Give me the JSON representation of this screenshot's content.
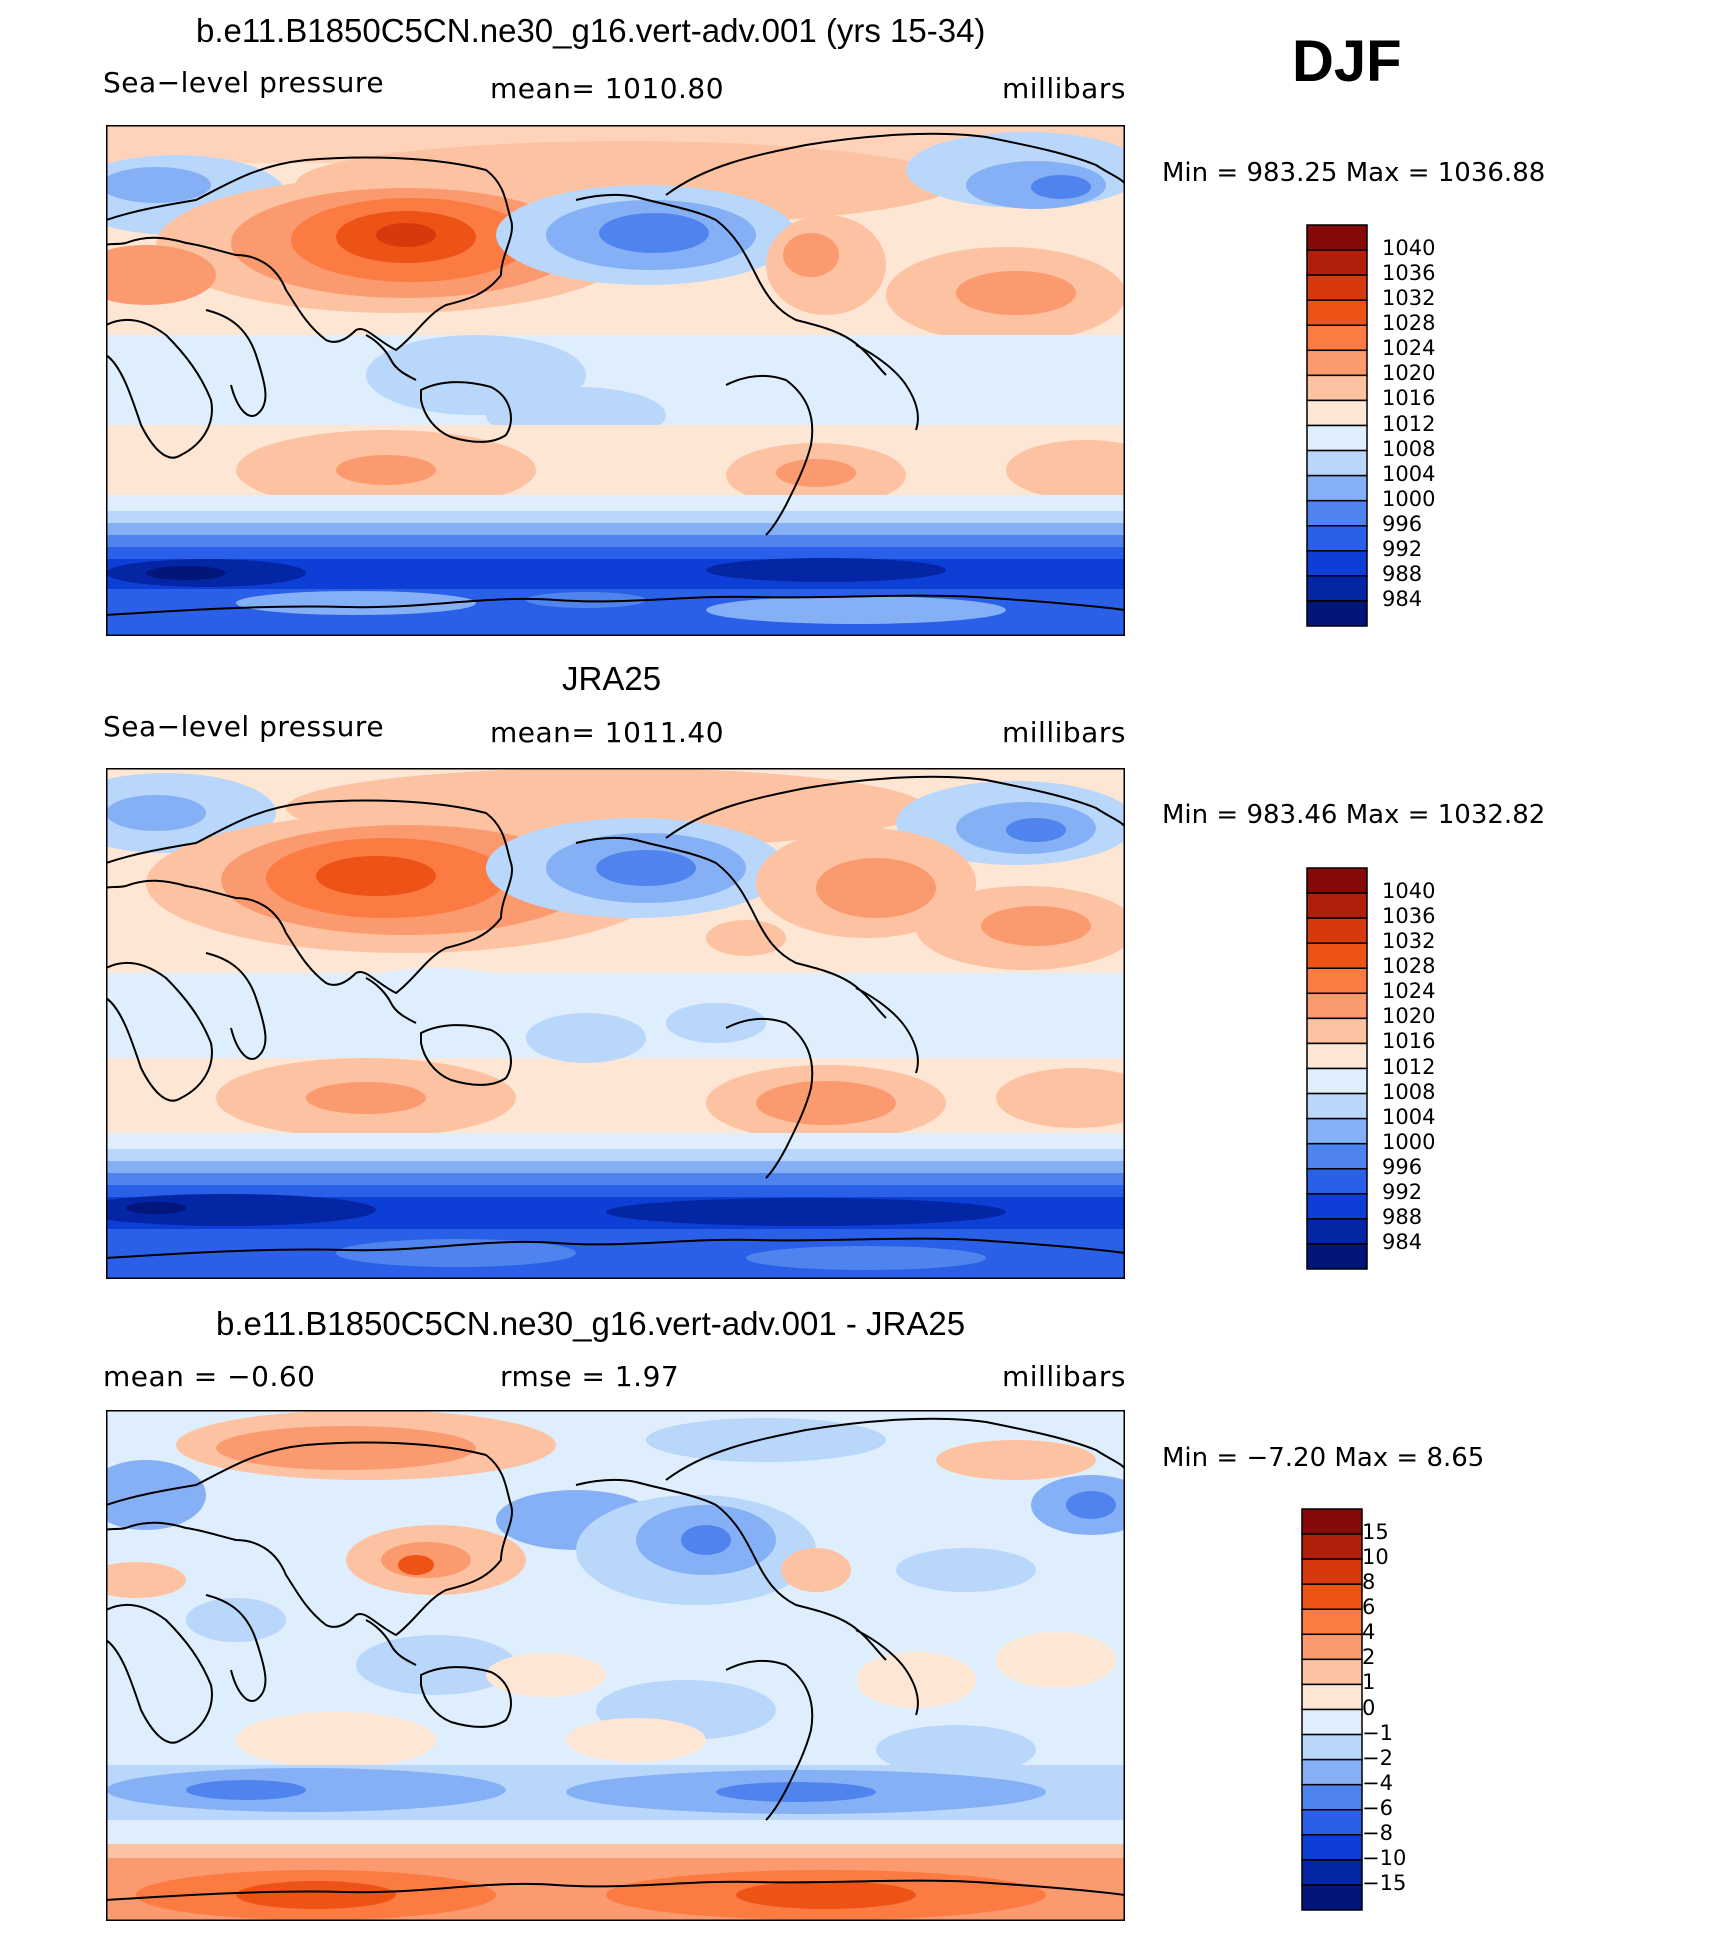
{
  "season": "DJF",
  "panels": [
    {
      "title": "b.e11.B1850C5CN.ne30_g16.vert-adv.001 (yrs 15-34)",
      "left_label": "Sea−level pressure",
      "center_label": "mean=  1010.80",
      "units": "millibars",
      "minmax": "Min  =  983.25  Max  =  1036.88",
      "colorbar": {
        "labels": [
          "1040",
          "1036",
          "1032",
          "1028",
          "1024",
          "1020",
          "1016",
          "1012",
          "1008",
          "1004",
          "1000",
          "996",
          "992",
          "988",
          "984"
        ],
        "colors": [
          "#870a0a",
          "#b01f0a",
          "#d63a0c",
          "#ee5316",
          "#fb7b43",
          "#fc9a6f",
          "#fdc2a2",
          "#fee6d4",
          "#dfeefc",
          "#b9d6fb",
          "#86b0f5",
          "#4f84ee",
          "#2a5fe8",
          "#0d3fd6",
          "#0526a4",
          "#02157a"
        ]
      }
    },
    {
      "title": "JRA25",
      "left_label": "Sea−level pressure",
      "center_label": "mean=  1011.40",
      "units": "millibars",
      "minmax": "Min  =  983.46  Max  =  1032.82",
      "colorbar": {
        "labels": [
          "1040",
          "1036",
          "1032",
          "1028",
          "1024",
          "1020",
          "1016",
          "1012",
          "1008",
          "1004",
          "1000",
          "996",
          "992",
          "988",
          "984"
        ],
        "colors": [
          "#870a0a",
          "#b01f0a",
          "#d63a0c",
          "#ee5316",
          "#fb7b43",
          "#fc9a6f",
          "#fdc2a2",
          "#fee6d4",
          "#dfeefc",
          "#b9d6fb",
          "#86b0f5",
          "#4f84ee",
          "#2a5fe8",
          "#0d3fd6",
          "#0526a4",
          "#02157a"
        ]
      }
    },
    {
      "title": "b.e11.B1850C5CN.ne30_g16.vert-adv.001 - JRA25",
      "left_label": "mean  =    −0.60",
      "center_label": "rmse  =     1.97",
      "units": "millibars",
      "minmax": "Min  =    −7.20  Max  =     8.65",
      "colorbar": {
        "labels": [
          "15",
          "10",
          "8",
          "6",
          "4",
          "2",
          "1",
          "0",
          "−1",
          "−2",
          "−4",
          "−6",
          "−8",
          "−10",
          "−15"
        ],
        "colors": [
          "#870a0a",
          "#b01f0a",
          "#d63a0c",
          "#ee5316",
          "#fb7b43",
          "#fc9a6f",
          "#fdc2a2",
          "#fee6d4",
          "#dfeefc",
          "#b9d6fb",
          "#86b0f5",
          "#4f84ee",
          "#2a5fe8",
          "#0d3fd6",
          "#0526a4",
          "#02157a"
        ]
      }
    }
  ]
}
